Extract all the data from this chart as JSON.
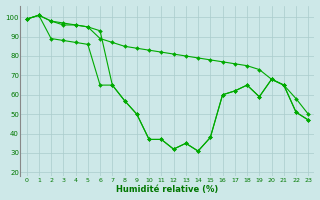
{
  "xlabel": "Humidité relative (%)",
  "background_color": "#cde8e8",
  "grid_color": "#aacccc",
  "line_color": "#00aa00",
  "x": [
    0,
    1,
    2,
    3,
    4,
    5,
    6,
    7,
    8,
    9,
    10,
    11,
    12,
    13,
    14,
    15,
    16,
    17,
    18,
    19,
    20,
    21,
    22,
    23
  ],
  "line1": [
    99,
    101,
    98,
    96,
    96,
    95,
    89,
    87,
    85,
    84,
    83,
    82,
    81,
    80,
    79,
    78,
    77,
    76,
    75,
    73,
    68,
    65,
    58,
    50
  ],
  "line2": [
    99,
    101,
    98,
    97,
    96,
    95,
    93,
    65,
    57,
    50,
    37,
    37,
    32,
    35,
    31,
    38,
    60,
    62,
    65,
    59,
    68,
    65,
    51,
    47
  ],
  "line3": [
    99,
    101,
    89,
    88,
    87,
    86,
    65,
    65,
    57,
    50,
    37,
    37,
    32,
    35,
    31,
    38,
    60,
    62,
    65,
    59,
    68,
    65,
    51,
    47
  ],
  "ylim": [
    18,
    106
  ],
  "yticks": [
    20,
    30,
    40,
    50,
    60,
    70,
    80,
    90,
    100
  ],
  "xlim": [
    -0.5,
    23.5
  ],
  "xticks": [
    0,
    1,
    2,
    3,
    4,
    5,
    6,
    7,
    8,
    9,
    10,
    11,
    12,
    13,
    14,
    15,
    16,
    17,
    18,
    19,
    20,
    21,
    22,
    23
  ]
}
